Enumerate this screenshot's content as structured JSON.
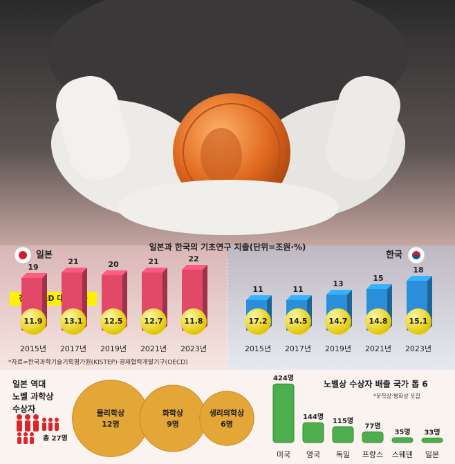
{
  "chart_data": [
    {
      "type": "bar",
      "title": "일본과 한국의 기초연구 지출(단위=조원·%)",
      "label": "일본",
      "legend": "전체 R&D 대비 비중",
      "categories": [
        "2015년",
        "2017년",
        "2019년",
        "2021년",
        "2023년"
      ],
      "values": [
        19,
        21,
        20,
        21,
        22
      ],
      "ratio_values": [
        11.9,
        13.1,
        12.5,
        12.7,
        11.8
      ],
      "color": "#e24868",
      "source": "*자료=한국과학기술기획평가원(KISTEP)·경제협력개발기구(OECD)"
    },
    {
      "type": "bar",
      "label": "한국",
      "categories": [
        "2015년",
        "2017년",
        "2019년",
        "2021년",
        "2023년"
      ],
      "values": [
        11,
        11,
        13,
        15,
        18
      ],
      "ratio_values": [
        17.2,
        14.5,
        14.7,
        14.8,
        15.1
      ],
      "color": "#2a8fd8"
    },
    {
      "type": "bubble",
      "title_lines": [
        "일본 역대",
        "노벨 과학상",
        "수상자"
      ],
      "total": "총 27명",
      "categories": [
        "물리학상",
        "화학상",
        "생리의학상"
      ],
      "values": [
        12,
        9,
        6
      ],
      "value_labels": [
        "12명",
        "9명",
        "6명"
      ],
      "color": "#e3a637"
    },
    {
      "type": "column",
      "title": "노벨상 수상자 배출 국가 톱 6",
      "note": "*문학상·평화상 포함",
      "categories": [
        "미국",
        "영국",
        "독일",
        "프랑스",
        "스웨덴",
        "일본"
      ],
      "values": [
        424,
        144,
        115,
        77,
        35,
        33
      ],
      "value_labels": [
        "424명",
        "144명",
        "115명",
        "77명",
        "35명",
        "33명"
      ],
      "color": "#4cae4c"
    }
  ]
}
